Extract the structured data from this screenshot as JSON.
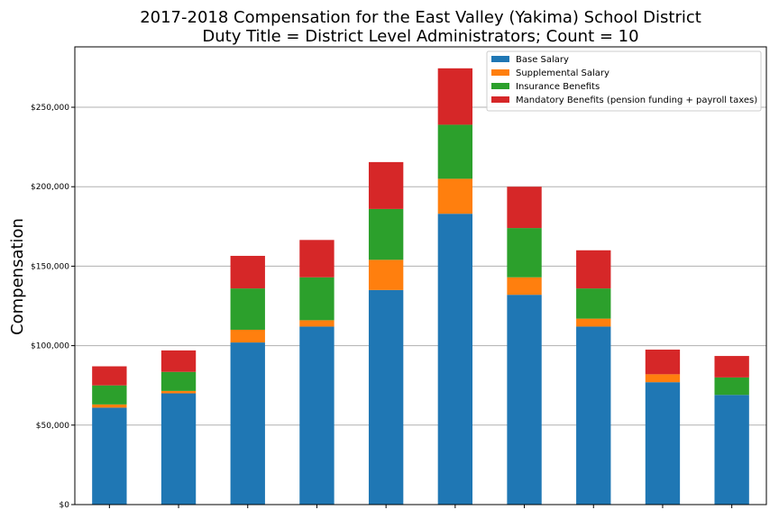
{
  "chart_data": {
    "type": "bar",
    "stacked": true,
    "title": "2017-2018 Compensation for the East Valley (Yakima) School District",
    "subtitle": "Duty Title = District Level Administrators; Count = 10",
    "xlabel": "",
    "ylabel": "Compensation",
    "ylim": [
      0,
      288000
    ],
    "yticks": [
      0,
      50000,
      100000,
      150000,
      200000,
      250000
    ],
    "ytick_labels": [
      "$0",
      "$50,000",
      "$100,000",
      "$150,000",
      "$200,000",
      "$250,000"
    ],
    "grid": "horizontal",
    "legend_position": "top-right",
    "categories": [
      "",
      "",
      "",
      "",
      "",
      "",
      "",
      "",
      "",
      ""
    ],
    "series": [
      {
        "name": "Base Salary",
        "color": "#1f77b4",
        "values": [
          61000,
          70000,
          102000,
          112000,
          135000,
          183000,
          132000,
          112000,
          77000,
          69000
        ]
      },
      {
        "name": "Supplemental Salary",
        "color": "#ff7f0e",
        "values": [
          2000,
          1500,
          8000,
          4000,
          19000,
          22000,
          11000,
          5000,
          5000,
          0
        ]
      },
      {
        "name": "Insurance Benefits",
        "color": "#2ca02c",
        "values": [
          12000,
          12000,
          26000,
          27000,
          32000,
          34000,
          31000,
          19000,
          0,
          11000
        ]
      },
      {
        "name": "Mandatory Benefits (pension funding + payroll taxes)",
        "color": "#d62728",
        "values": [
          12000,
          13500,
          20500,
          23500,
          29500,
          35500,
          26000,
          24000,
          15500,
          13500
        ]
      }
    ]
  }
}
